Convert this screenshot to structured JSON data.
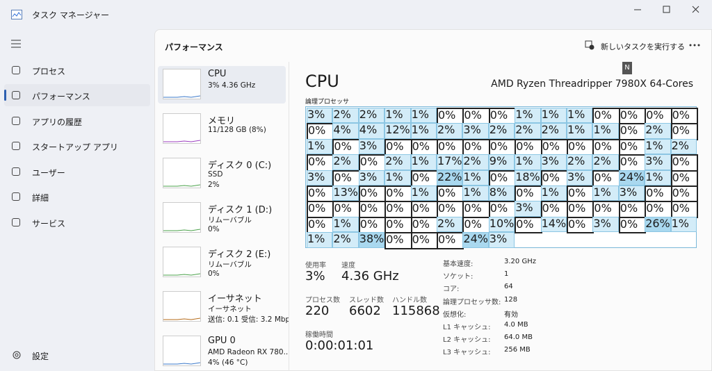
{
  "window": {
    "title": "タスク マネージャー"
  },
  "nav": {
    "items": [
      "プロセス",
      "パフォーマンス",
      "アプリの履歴",
      "スタートアップ アプリ",
      "ユーザー",
      "詳細",
      "サービス"
    ],
    "settings": "設定"
  },
  "header": {
    "title": "パフォーマンス",
    "run_task": "新しいタスクを実行する",
    "tooltip": "N"
  },
  "devices": [
    {
      "name": "CPU",
      "lines": [
        "3% 4.36 GHz"
      ]
    },
    {
      "name": "メモリ",
      "lines": [
        "11/128 GB (8%)"
      ]
    },
    {
      "name": "ディスク 0 (C:)",
      "lines": [
        "SSD",
        "2%"
      ]
    },
    {
      "name": "ディスク 1 (D:)",
      "lines": [
        "リムーバブル",
        "0%"
      ]
    },
    {
      "name": "ディスク 2 (E:)",
      "lines": [
        "リムーバブル",
        "0%"
      ]
    },
    {
      "name": "イーサネット",
      "lines": [
        "イーサネット",
        "送信: 0.1 受信: 3.2 Mbps"
      ]
    },
    {
      "name": "GPU 0",
      "lines": [
        "AMD Radeon RX 780...",
        "4% (46 °C)"
      ]
    }
  ],
  "cpu": {
    "title": "CPU",
    "model": "AMD Ryzen Threadripper 7980X 64-Cores",
    "grid_label": "論理プロセッサ",
    "cores": [
      "3%",
      "2%",
      "2%",
      "1%",
      "1%",
      "0%",
      "0%",
      "0%",
      "1%",
      "1%",
      "1%",
      "0%",
      "0%",
      "0%",
      "0%",
      "0%",
      "4%",
      "4%",
      "12%",
      "1%",
      "2%",
      "3%",
      "2%",
      "2%",
      "2%",
      "1%",
      "1%",
      "0%",
      "2%",
      "0%",
      "1%",
      "0%",
      "3%",
      "0%",
      "0%",
      "0%",
      "0%",
      "0%",
      "0%",
      "0%",
      "0%",
      "0%",
      "0%",
      "1%",
      "2%",
      "0%",
      "2%",
      "0%",
      "2%",
      "1%",
      "17%",
      "2%",
      "9%",
      "1%",
      "3%",
      "2%",
      "2%",
      "0%",
      "3%",
      "0%",
      "3%",
      "0%",
      "3%",
      "1%",
      "0%",
      "22%",
      "1%",
      "0%",
      "18%",
      "0%",
      "3%",
      "0%",
      "24%",
      "1%",
      "0%",
      "0%",
      "13%",
      "0%",
      "0%",
      "1%",
      "0%",
      "1%",
      "8%",
      "0%",
      "1%",
      "0%",
      "1%",
      "3%",
      "0%",
      "0%",
      "0%",
      "0%",
      "0%",
      "0%",
      "0%",
      "0%",
      "0%",
      "0%",
      "3%",
      "0%",
      "0%",
      "0%",
      "0%",
      "0%",
      "0%",
      "0%",
      "1%",
      "0%",
      "0%",
      "0%",
      "2%",
      "0%",
      "10%",
      "0%",
      "14%",
      "0%",
      "3%",
      "0%",
      "26%",
      "1%",
      "1%",
      "2%",
      "38%",
      "0%",
      "0%",
      "0%",
      "24%",
      "3%"
    ],
    "stats": [
      [
        {
          "label": "使用率",
          "value": "3%"
        },
        {
          "label": "速度",
          "value": "4.36 GHz"
        }
      ],
      [
        {
          "label": "プロセス数",
          "value": "220"
        },
        {
          "label": "スレッド数",
          "value": "6602"
        },
        {
          "label": "ハンドル数",
          "value": "115868"
        }
      ],
      [
        {
          "label": "稼働時間",
          "value": "0:00:01:01"
        }
      ]
    ],
    "specs": [
      {
        "label": "基本速度:",
        "value": "3.20 GHz"
      },
      {
        "label": "ソケット:",
        "value": "1"
      },
      {
        "label": "コア:",
        "value": "64"
      },
      {
        "label": "論理プロセッサ数:",
        "value": "128"
      },
      {
        "label": "仮想化:",
        "value": "有効"
      },
      {
        "label": "L1 キャッシュ:",
        "value": "4.0 MB"
      },
      {
        "label": "L2 キャッシュ:",
        "value": "64.0 MB"
      },
      {
        "label": "L3 キャッシュ:",
        "value": "256 MB"
      }
    ]
  }
}
